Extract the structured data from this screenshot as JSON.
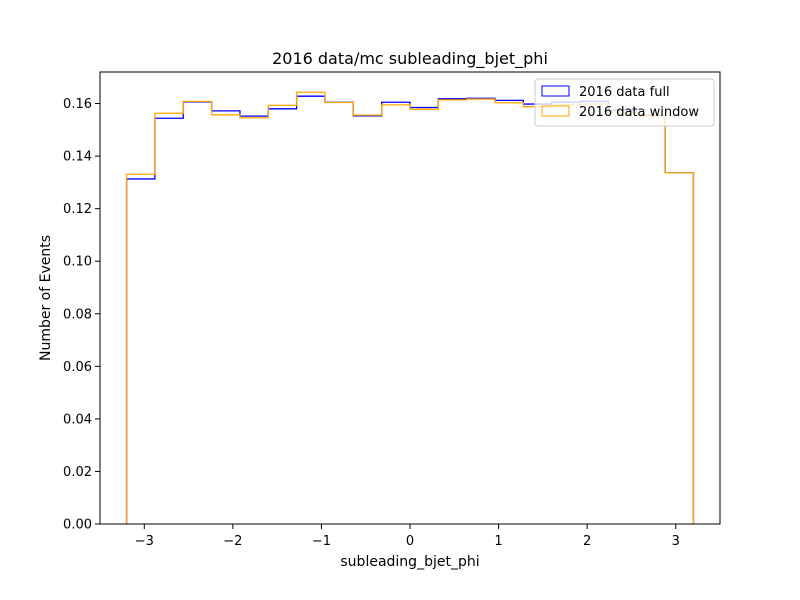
{
  "chart_data": {
    "type": "histogram",
    "title": "2016 data/mc subleading_bjet_phi",
    "xlabel": "subleading_bjet_phi",
    "ylabel": "Number of Events",
    "xlim": [
      -3.5,
      3.5
    ],
    "ylim": [
      0.0,
      0.172
    ],
    "x_ticks": [
      -3,
      -2,
      -1,
      0,
      1,
      2,
      3
    ],
    "x_tick_labels": [
      "−3",
      "−2",
      "−1",
      "0",
      "1",
      "2",
      "3"
    ],
    "y_ticks": [
      0.0,
      0.02,
      0.04,
      0.06,
      0.08,
      0.1,
      0.12,
      0.14,
      0.16
    ],
    "y_tick_labels": [
      "0.00",
      "0.02",
      "0.04",
      "0.06",
      "0.08",
      "0.10",
      "0.12",
      "0.14",
      "0.16"
    ],
    "grid": false,
    "legend_position": "top-right",
    "bin_edges": [
      -3.2,
      -2.88,
      -2.56,
      -2.24,
      -1.92,
      -1.6,
      -1.28,
      -0.96,
      -0.64,
      -0.32,
      0.0,
      0.32,
      0.64,
      0.96,
      1.28,
      1.6,
      1.92,
      2.24,
      2.56,
      2.88,
      3.2
    ],
    "series": [
      {
        "name": "2016 data full",
        "color": "#0000ff",
        "values": [
          0.1313,
          0.1544,
          0.1606,
          0.1572,
          0.1552,
          0.158,
          0.1628,
          0.1605,
          0.1553,
          0.1605,
          0.1585,
          0.1618,
          0.162,
          0.1612,
          0.1598,
          0.1605,
          0.1608,
          0.1575,
          0.1555,
          0.1336
        ]
      },
      {
        "name": "2016 data window",
        "color": "#ffa500",
        "values": [
          0.1331,
          0.1563,
          0.1608,
          0.1557,
          0.1546,
          0.1593,
          0.1643,
          0.1604,
          0.1556,
          0.1595,
          0.1578,
          0.1614,
          0.1617,
          0.1603,
          0.1588,
          0.1595,
          0.1598,
          0.1568,
          0.1553,
          0.1336
        ]
      }
    ]
  }
}
